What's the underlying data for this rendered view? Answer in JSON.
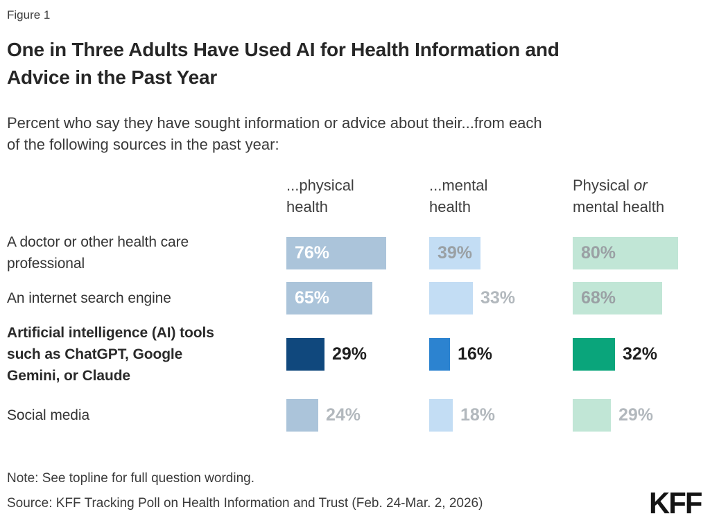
{
  "figure_label": "Figure 1",
  "title": "One in Three Adults Have Used AI for Health Information and Advice in the Past Year",
  "title_lines": [
    "One in Three Adults Have Used AI for Health Information and",
    "Advice in the Past Year"
  ],
  "subtitle": "Percent who say they have sought information or advice about their...from each of the following sources in the past year:",
  "subtitle_lines": [
    "Percent who say they have sought information or advice about their...from each",
    "of the following sources in the past year:"
  ],
  "note": "Note: See topline for full question wording.",
  "source": "Source: KFF Tracking Poll on Health Information and Trust (Feb. 24-Mar. 2, 2026)",
  "logo": "KFF",
  "colors": {
    "background": "#ffffff",
    "title_text": "#262626",
    "body_text": "#3a3a3a",
    "bar_label_white": "#ffffff",
    "bar_label_gray_inside": "#9aa0a4",
    "bar_label_gray_outside": "#b2b8bd",
    "bar_label_dark": "#1f1f1f"
  },
  "chart_data": {
    "type": "bar",
    "orientation": "horizontal",
    "unit": "%",
    "xlim": [
      0,
      100
    ],
    "grid": false,
    "legend": "none",
    "columns": [
      {
        "id": "physical",
        "label_line1": "...physical",
        "label_line1_italic": "",
        "label_line2": "health",
        "bar_color": "#abc4da",
        "emphasis_color": "#10487d"
      },
      {
        "id": "mental",
        "label_line1": "...mental",
        "label_line1_italic": "",
        "label_line2": "health",
        "bar_color": "#c3ddf4",
        "emphasis_color": "#2c83d0"
      },
      {
        "id": "physical-or-mental",
        "label_line1": "Physical ",
        "label_line1_italic": "or",
        "label_line2": "mental health",
        "bar_color": "#c1e6d6",
        "emphasis_color": "#0aa57b"
      }
    ],
    "categories": [
      "...physical health",
      "...mental health",
      "Physical or mental health"
    ],
    "rows": [
      {
        "label": "A doctor or other health care professional",
        "label_lines": [
          "A doctor or other health care",
          "professional"
        ],
        "emphasis": false,
        "values": [
          76,
          39,
          80
        ],
        "label_placement": [
          "inside-white",
          "inside-gray",
          "inside-gray"
        ]
      },
      {
        "label": "An internet search engine",
        "label_lines": [
          "An internet search engine"
        ],
        "emphasis": false,
        "values": [
          65,
          33,
          68
        ],
        "label_placement": [
          "inside-white",
          "outside-gray",
          "inside-gray"
        ]
      },
      {
        "label": "Artificial intelligence (AI) tools such as ChatGPT, Google Gemini, or Claude",
        "label_lines": [
          "Artificial intelligence (AI) tools",
          "such as ChatGPT, Google",
          "Gemini, or Claude"
        ],
        "emphasis": true,
        "values": [
          29,
          16,
          32
        ],
        "label_placement": [
          "outside-dark",
          "outside-dark",
          "outside-dark"
        ]
      },
      {
        "label": "Social media",
        "label_lines": [
          "Social media"
        ],
        "emphasis": false,
        "values": [
          24,
          18,
          29
        ],
        "label_placement": [
          "outside-gray",
          "outside-gray",
          "outside-gray"
        ]
      }
    ]
  }
}
